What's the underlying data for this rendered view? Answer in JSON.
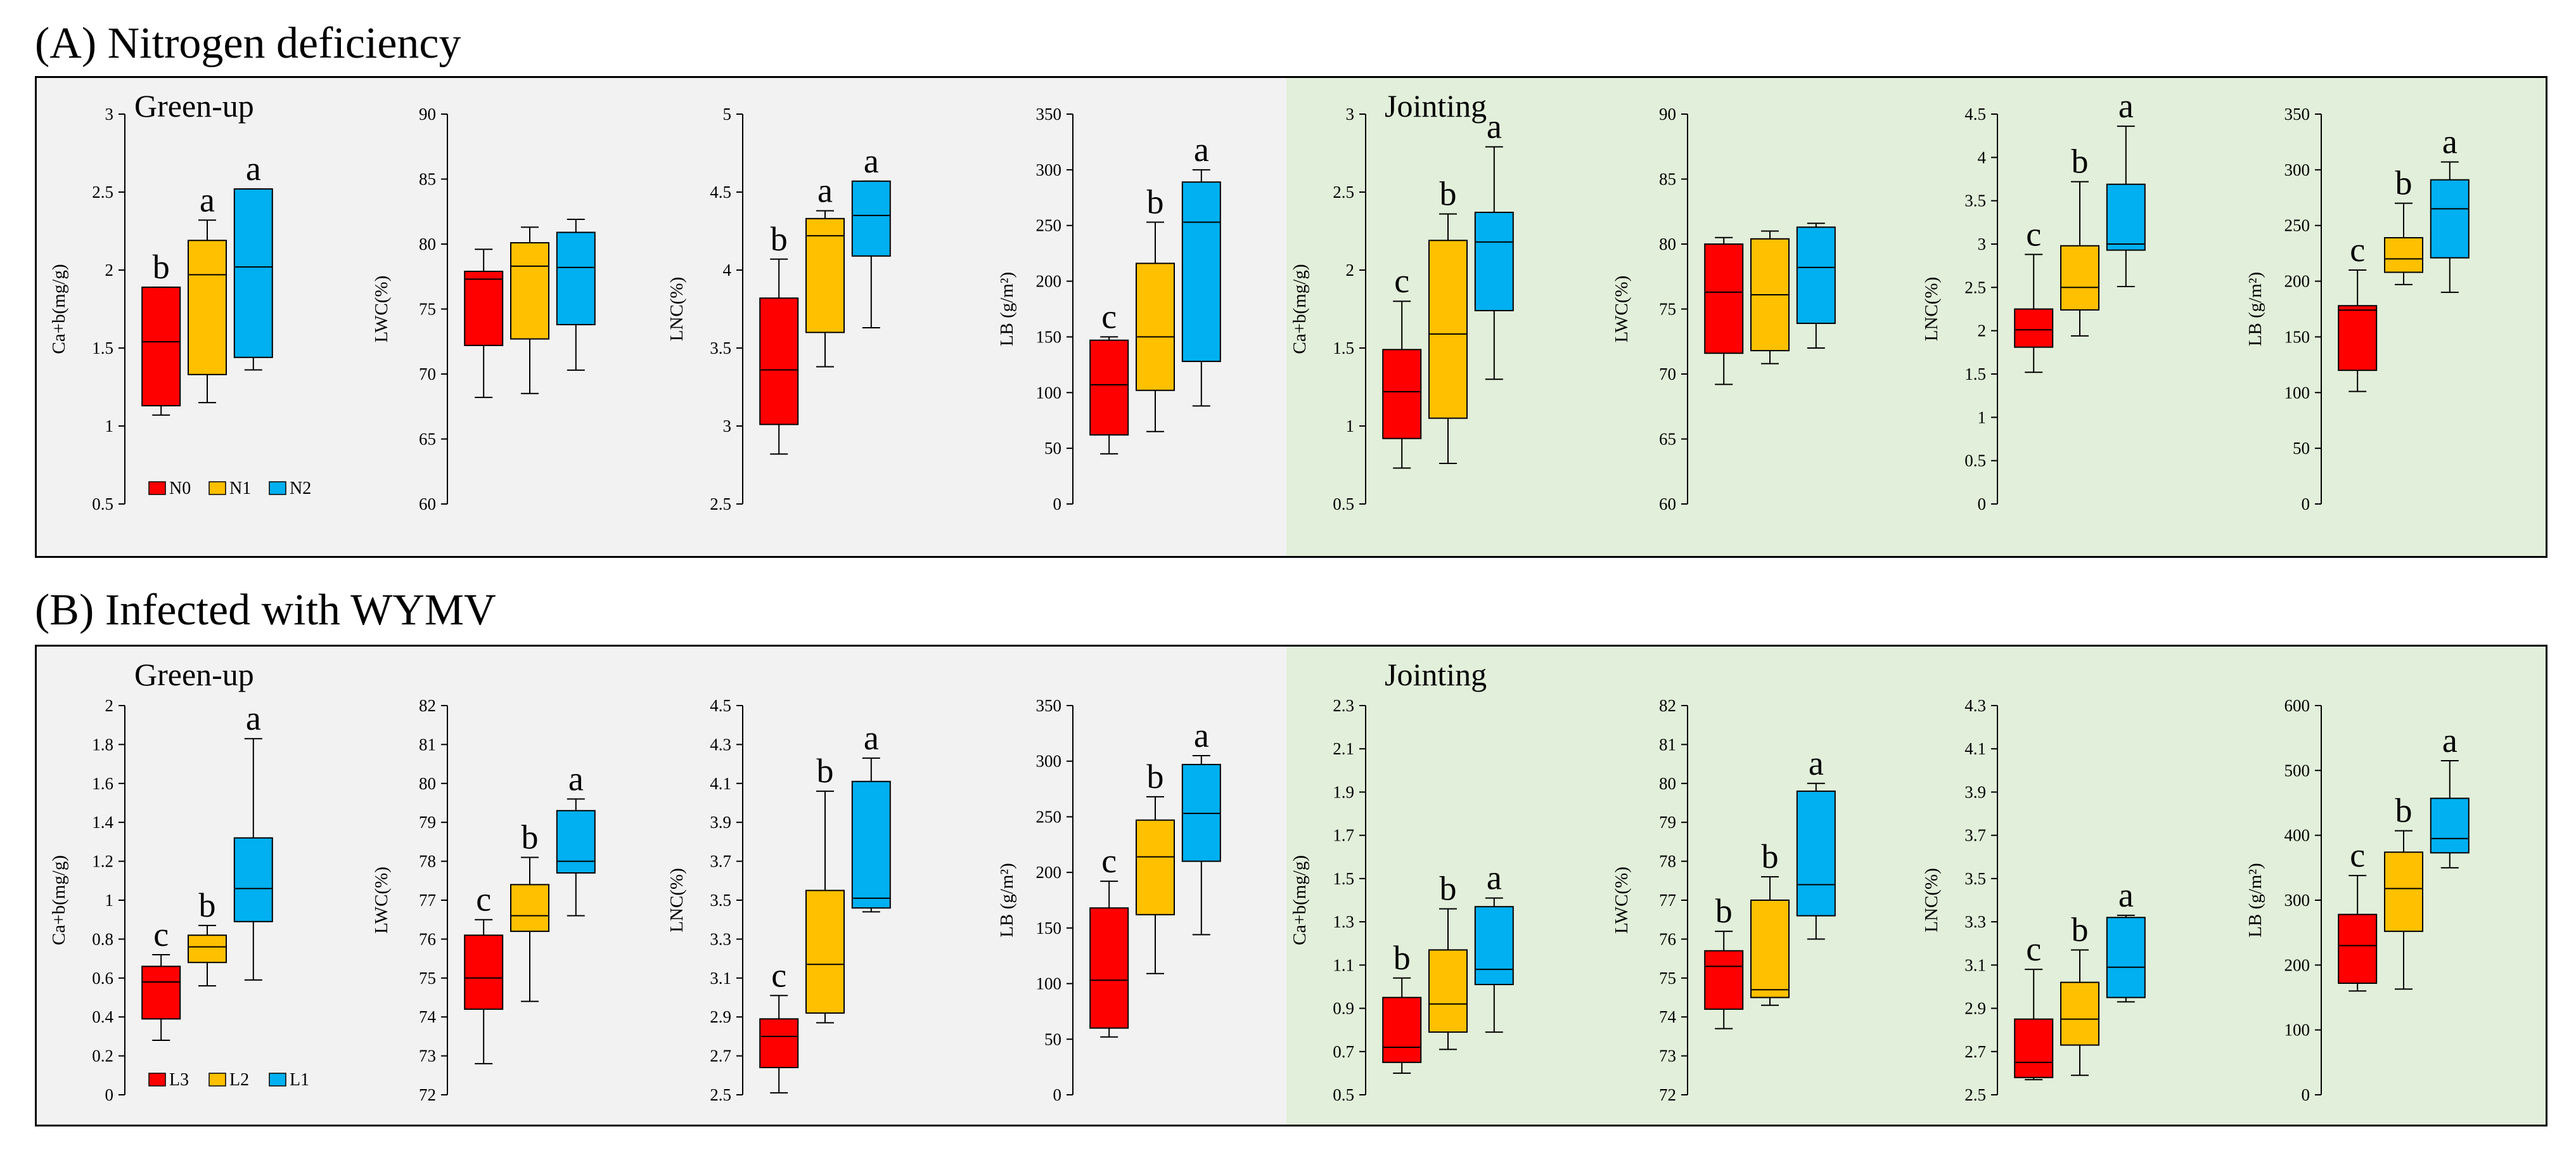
{
  "sections": [
    {
      "title": "(A) Nitrogen deficiency",
      "legend": [
        "N0",
        "N1",
        "N2"
      ],
      "phases": [
        "Green-up",
        "Jointing"
      ]
    },
    {
      "title": "(B) Infected with WYMV",
      "legend": [
        "L3",
        "L2",
        "L1"
      ],
      "phases": [
        "Green-up",
        "Jointing"
      ]
    }
  ],
  "colors": {
    "group1": "#ff0000",
    "group2": "#ffc000",
    "group3": "#00b0f0",
    "greenup_bg": "#f2f2f2",
    "jointing_bg": "#e2efda"
  },
  "chart_data": [
    {
      "type": "boxplot",
      "section": "A",
      "phase": "Green-up",
      "ylabel": "Ca+b(mg/g)",
      "ylim": [
        0.5,
        3
      ],
      "ticks": [
        "0.5",
        "1",
        "1.5",
        "2",
        "2.5",
        "3"
      ],
      "groups": [
        "N0",
        "N1",
        "N2"
      ],
      "boxes": [
        {
          "min": 1.07,
          "q1": 1.13,
          "median": 1.54,
          "q3": 1.89,
          "max": 1.89
        },
        {
          "min": 1.15,
          "q1": 1.33,
          "median": 1.97,
          "q3": 2.19,
          "max": 2.32
        },
        {
          "min": 1.36,
          "q1": 1.44,
          "median": 2.02,
          "q3": 2.52,
          "max": 2.52
        }
      ],
      "letters": [
        "b",
        "a",
        "a"
      ]
    },
    {
      "type": "boxplot",
      "section": "A",
      "phase": "Green-up",
      "ylabel": "LWC(%)",
      "ylim": [
        60,
        90
      ],
      "ticks": [
        "60",
        "65",
        "70",
        "75",
        "80",
        "85",
        "90"
      ],
      "groups": [
        "N0",
        "N1",
        "N2"
      ],
      "boxes": [
        {
          "min": 68.2,
          "q1": 72.2,
          "median": 77.3,
          "q3": 77.9,
          "max": 79.6
        },
        {
          "min": 68.5,
          "q1": 72.7,
          "median": 78.3,
          "q3": 80.1,
          "max": 81.3
        },
        {
          "min": 70.3,
          "q1": 73.8,
          "median": 78.2,
          "q3": 80.9,
          "max": 81.9
        }
      ],
      "letters": [
        "",
        "",
        ""
      ]
    },
    {
      "type": "boxplot",
      "section": "A",
      "phase": "Green-up",
      "ylabel": "LNC(%)",
      "ylim": [
        2.5,
        5
      ],
      "ticks": [
        "2.5",
        "3",
        "3.5",
        "4",
        "4.5",
        "5"
      ],
      "groups": [
        "N0",
        "N1",
        "N2"
      ],
      "boxes": [
        {
          "min": 2.82,
          "q1": 3.01,
          "median": 3.36,
          "q3": 3.82,
          "max": 4.07
        },
        {
          "min": 3.38,
          "q1": 3.6,
          "median": 4.22,
          "q3": 4.33,
          "max": 4.38
        },
        {
          "min": 3.63,
          "q1": 4.09,
          "median": 4.35,
          "q3": 4.57,
          "max": 4.57
        }
      ],
      "letters": [
        "b",
        "a",
        "a"
      ]
    },
    {
      "type": "boxplot",
      "section": "A",
      "phase": "Green-up",
      "ylabel": "LB (g/m²)",
      "ylim": [
        0,
        350
      ],
      "ticks": [
        "0",
        "50",
        "100",
        "150",
        "200",
        "250",
        "300",
        "350"
      ],
      "groups": [
        "N0",
        "N1",
        "N2"
      ],
      "boxes": [
        {
          "min": 45,
          "q1": 62,
          "median": 107,
          "q3": 147,
          "max": 150
        },
        {
          "min": 65,
          "q1": 102,
          "median": 150,
          "q3": 216,
          "max": 253
        },
        {
          "min": 88,
          "q1": 128,
          "median": 253,
          "q3": 289,
          "max": 300
        }
      ],
      "letters": [
        "c",
        "b",
        "a"
      ]
    },
    {
      "type": "boxplot",
      "section": "A",
      "phase": "Jointing",
      "ylabel": "Ca+b(mg/g)",
      "ylim": [
        0.5,
        3
      ],
      "ticks": [
        "0.5",
        "1",
        "1.5",
        "2",
        "2.5",
        "3"
      ],
      "groups": [
        "N0",
        "N1",
        "N2"
      ],
      "boxes": [
        {
          "min": 0.73,
          "q1": 0.92,
          "median": 1.22,
          "q3": 1.49,
          "max": 1.8
        },
        {
          "min": 0.76,
          "q1": 1.05,
          "median": 1.59,
          "q3": 2.19,
          "max": 2.36
        },
        {
          "min": 1.3,
          "q1": 1.74,
          "median": 2.18,
          "q3": 2.37,
          "max": 2.79
        }
      ],
      "letters": [
        "c",
        "b",
        "a"
      ]
    },
    {
      "type": "boxplot",
      "section": "A",
      "phase": "Jointing",
      "ylabel": "LWC(%)",
      "ylim": [
        60,
        90
      ],
      "ticks": [
        "60",
        "65",
        "70",
        "75",
        "80",
        "85",
        "90"
      ],
      "groups": [
        "N0",
        "N1",
        "N2"
      ],
      "boxes": [
        {
          "min": 69.2,
          "q1": 71.6,
          "median": 76.3,
          "q3": 80,
          "max": 80.5
        },
        {
          "min": 70.8,
          "q1": 71.8,
          "median": 76.1,
          "q3": 80.4,
          "max": 81
        },
        {
          "min": 72,
          "q1": 73.9,
          "median": 78.2,
          "q3": 81.3,
          "max": 81.6
        }
      ],
      "letters": [
        "",
        "",
        ""
      ]
    },
    {
      "type": "boxplot",
      "section": "A",
      "phase": "Jointing",
      "ylabel": "LNC(%)",
      "ylim": [
        0,
        4.5
      ],
      "ticks": [
        "0",
        "0.5",
        "1",
        "1.5",
        "2",
        "2.5",
        "3",
        "3.5",
        "4",
        "4.5"
      ],
      "groups": [
        "N0",
        "N1",
        "N2"
      ],
      "boxes": [
        {
          "min": 1.52,
          "q1": 1.81,
          "median": 2.01,
          "q3": 2.25,
          "max": 2.88
        },
        {
          "min": 1.94,
          "q1": 2.24,
          "median": 2.5,
          "q3": 2.98,
          "max": 3.72
        },
        {
          "min": 2.51,
          "q1": 2.93,
          "median": 3,
          "q3": 3.69,
          "max": 4.36
        }
      ],
      "letters": [
        "c",
        "b",
        "a"
      ]
    },
    {
      "type": "boxplot",
      "section": "A",
      "phase": "Jointing",
      "ylabel": "LB (g/m²)",
      "ylim": [
        0,
        350
      ],
      "ticks": [
        "0",
        "50",
        "100",
        "150",
        "200",
        "250",
        "300",
        "350"
      ],
      "groups": [
        "N0",
        "N1",
        "N2"
      ],
      "boxes": [
        {
          "min": 101,
          "q1": 120,
          "median": 174,
          "q3": 178,
          "max": 210
        },
        {
          "min": 197,
          "q1": 208,
          "median": 220,
          "q3": 239,
          "max": 270
        },
        {
          "min": 190,
          "q1": 221,
          "median": 265,
          "q3": 291,
          "max": 307
        }
      ],
      "letters": [
        "c",
        "b",
        "a"
      ]
    },
    {
      "type": "boxplot",
      "section": "B",
      "phase": "Green-up",
      "ylabel": "Ca+b(mg/g)",
      "ylim": [
        0,
        2
      ],
      "ticks": [
        "0",
        "0.2",
        "0.4",
        "0.6",
        "0.8",
        "1",
        "1.2",
        "1.4",
        "1.6",
        "1.8",
        "2"
      ],
      "groups": [
        "L3",
        "L2",
        "L1"
      ],
      "boxes": [
        {
          "min": 0.28,
          "q1": 0.39,
          "median": 0.58,
          "q3": 0.66,
          "max": 0.72
        },
        {
          "min": 0.56,
          "q1": 0.68,
          "median": 0.76,
          "q3": 0.82,
          "max": 0.87
        },
        {
          "min": 0.59,
          "q1": 0.89,
          "median": 1.06,
          "q3": 1.32,
          "max": 1.83
        }
      ],
      "letters": [
        "c",
        "b",
        "a"
      ]
    },
    {
      "type": "boxplot",
      "section": "B",
      "phase": "Green-up",
      "ylabel": "LWC(%)",
      "ylim": [
        72,
        82
      ],
      "ticks": [
        "72",
        "73",
        "74",
        "75",
        "76",
        "77",
        "78",
        "79",
        "80",
        "81",
        "82"
      ],
      "groups": [
        "L3",
        "L2",
        "L1"
      ],
      "boxes": [
        {
          "min": 72.8,
          "q1": 74.2,
          "median": 75,
          "q3": 76.1,
          "max": 76.5
        },
        {
          "min": 74.4,
          "q1": 76.2,
          "median": 76.6,
          "q3": 77.4,
          "max": 78.1
        },
        {
          "min": 76.6,
          "q1": 77.7,
          "median": 78,
          "q3": 79.3,
          "max": 79.6
        }
      ],
      "letters": [
        "c",
        "b",
        "a"
      ]
    },
    {
      "type": "boxplot",
      "section": "B",
      "phase": "Green-up",
      "ylabel": "LNC(%)",
      "ylim": [
        2.5,
        4.5
      ],
      "ticks": [
        "2.5",
        "2.7",
        "2.9",
        "3.1",
        "3.3",
        "3.5",
        "3.7",
        "3.9",
        "4.1",
        "4.3",
        "4.5"
      ],
      "groups": [
        "L3",
        "L2",
        "L1"
      ],
      "boxes": [
        {
          "min": 2.51,
          "q1": 2.64,
          "median": 2.8,
          "q3": 2.89,
          "max": 3.01
        },
        {
          "min": 2.87,
          "q1": 2.92,
          "median": 3.17,
          "q3": 3.55,
          "max": 4.06
        },
        {
          "min": 3.44,
          "q1": 3.46,
          "median": 3.51,
          "q3": 4.11,
          "max": 4.23
        }
      ],
      "letters": [
        "c",
        "b",
        "a"
      ]
    },
    {
      "type": "boxplot",
      "section": "B",
      "phase": "Green-up",
      "ylabel": "LB (g/m²)",
      "ylim": [
        0,
        350
      ],
      "ticks": [
        "0",
        "50",
        "100",
        "150",
        "200",
        "250",
        "300",
        "350"
      ],
      "groups": [
        "L3",
        "L2",
        "L1"
      ],
      "boxes": [
        {
          "min": 52,
          "q1": 60,
          "median": 103,
          "q3": 168,
          "max": 192
        },
        {
          "min": 109,
          "q1": 162,
          "median": 214,
          "q3": 247,
          "max": 268
        },
        {
          "min": 144,
          "q1": 210,
          "median": 253,
          "q3": 297,
          "max": 305
        }
      ],
      "letters": [
        "c",
        "b",
        "a"
      ]
    },
    {
      "type": "boxplot",
      "section": "B",
      "phase": "Jointing",
      "ylabel": "Ca+b(mg/g)",
      "ylim": [
        0.5,
        2.3
      ],
      "ticks": [
        "0.5",
        "0.7",
        "0.9",
        "1.1",
        "1.3",
        "1.5",
        "1.7",
        "1.9",
        "2.1",
        "2.3"
      ],
      "groups": [
        "L3",
        "L2",
        "L1"
      ],
      "boxes": [
        {
          "min": 0.6,
          "q1": 0.65,
          "median": 0.72,
          "q3": 0.95,
          "max": 1.04
        },
        {
          "min": 0.71,
          "q1": 0.79,
          "median": 0.92,
          "q3": 1.17,
          "max": 1.36
        },
        {
          "min": 0.79,
          "q1": 1.01,
          "median": 1.08,
          "q3": 1.37,
          "max": 1.41
        }
      ],
      "letters": [
        "b",
        "b",
        "a"
      ]
    },
    {
      "type": "boxplot",
      "section": "B",
      "phase": "Jointing",
      "ylabel": "LWC(%)",
      "ylim": [
        72,
        82
      ],
      "ticks": [
        "72",
        "73",
        "74",
        "75",
        "76",
        "77",
        "78",
        "79",
        "80",
        "81",
        "82"
      ],
      "groups": [
        "L3",
        "L2",
        "L1"
      ],
      "boxes": [
        {
          "min": 73.7,
          "q1": 74.2,
          "median": 75.3,
          "q3": 75.7,
          "max": 76.2
        },
        {
          "min": 74.3,
          "q1": 74.5,
          "median": 74.7,
          "q3": 77,
          "max": 77.6
        },
        {
          "min": 76,
          "q1": 76.6,
          "median": 77.4,
          "q3": 79.8,
          "max": 80
        }
      ],
      "letters": [
        "b",
        "b",
        "a"
      ]
    },
    {
      "type": "boxplot",
      "section": "B",
      "phase": "Jointing",
      "ylabel": "LNC(%)",
      "ylim": [
        2.5,
        4.3
      ],
      "ticks": [
        "2.5",
        "2.7",
        "2.9",
        "3.1",
        "3.3",
        "3.5",
        "3.7",
        "3.9",
        "4.1",
        "4.3"
      ],
      "groups": [
        "L3",
        "L2",
        "L1"
      ],
      "boxes": [
        {
          "min": 2.57,
          "q1": 2.58,
          "median": 2.65,
          "q3": 2.85,
          "max": 3.08
        },
        {
          "min": 2.59,
          "q1": 2.73,
          "median": 2.85,
          "q3": 3.02,
          "max": 3.17
        },
        {
          "min": 2.93,
          "q1": 2.95,
          "median": 3.09,
          "q3": 3.32,
          "max": 3.33
        }
      ],
      "letters": [
        "c",
        "b",
        "a"
      ]
    },
    {
      "type": "boxplot",
      "section": "B",
      "phase": "Jointing",
      "ylabel": "LB (g/m²)",
      "ylim": [
        0,
        600
      ],
      "ticks": [
        "0",
        "100",
        "200",
        "300",
        "400",
        "500",
        "600"
      ],
      "groups": [
        "L3",
        "L2",
        "L1"
      ],
      "boxes": [
        {
          "min": 160,
          "q1": 172,
          "median": 230,
          "q3": 278,
          "max": 338
        },
        {
          "min": 163,
          "q1": 252,
          "median": 318,
          "q3": 374,
          "max": 407
        },
        {
          "min": 350,
          "q1": 373,
          "median": 395,
          "q3": 457,
          "max": 515
        }
      ],
      "letters": [
        "c",
        "b",
        "a"
      ]
    }
  ]
}
